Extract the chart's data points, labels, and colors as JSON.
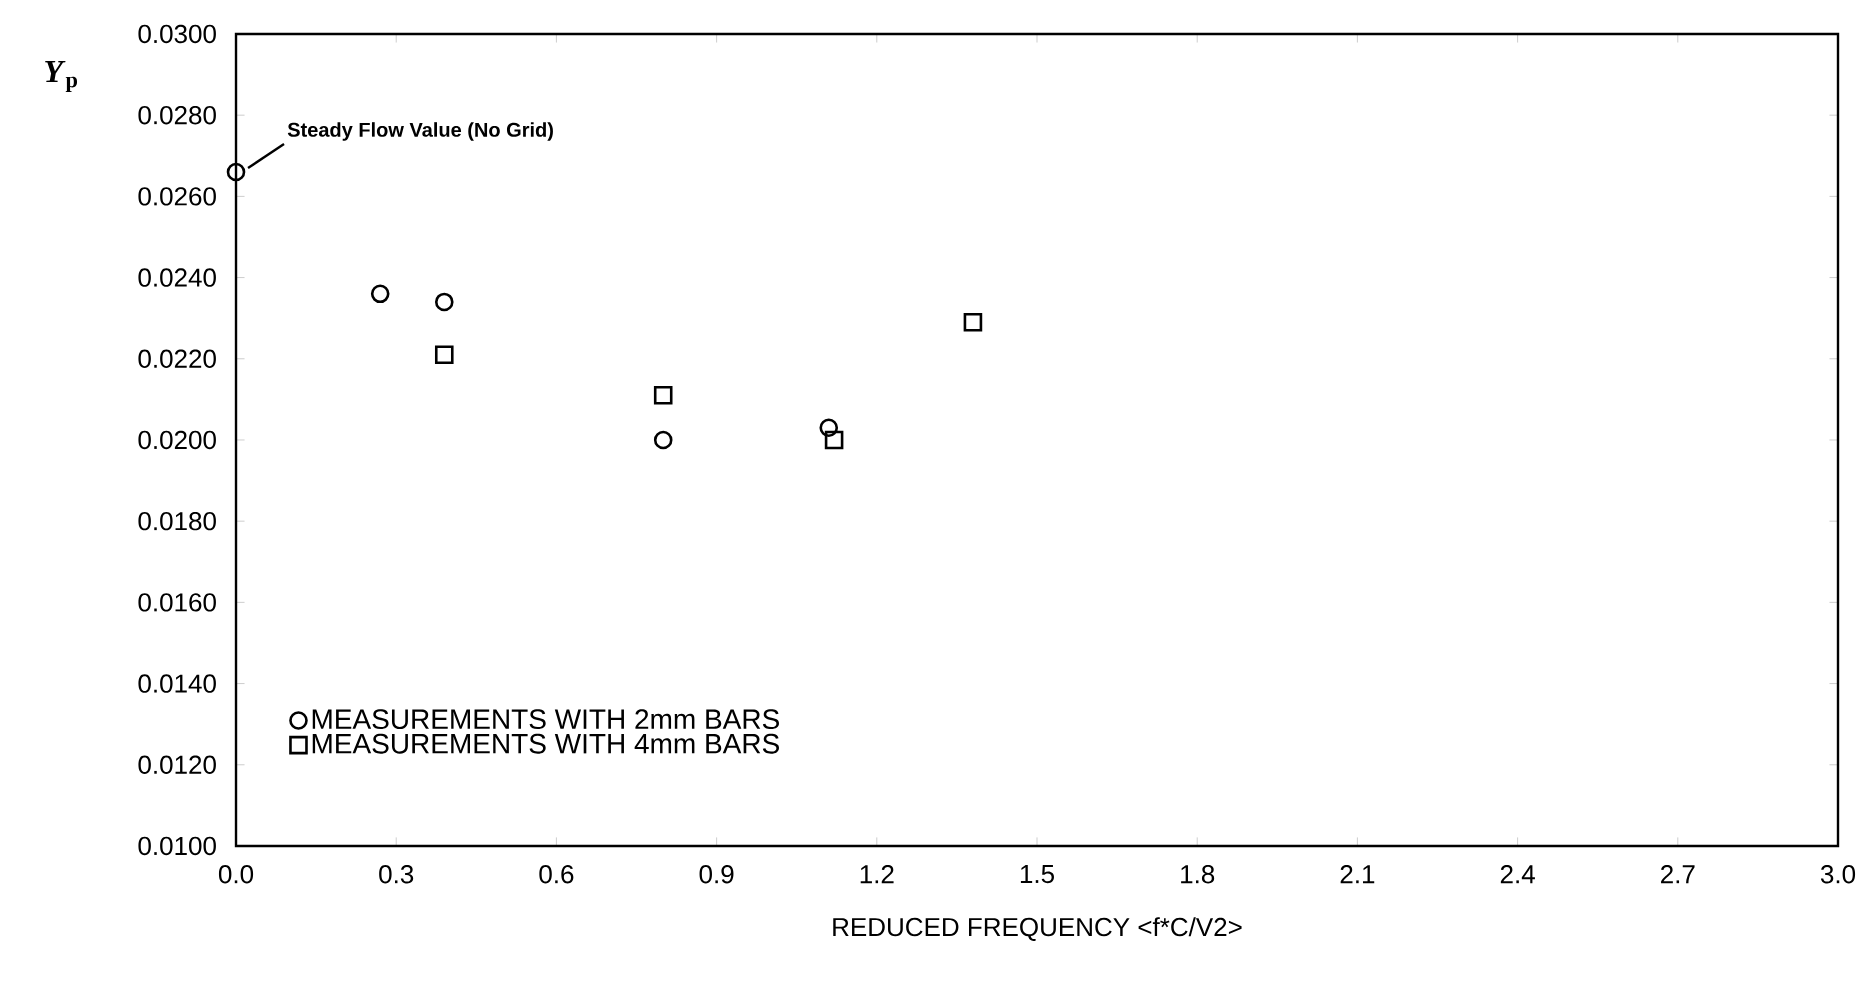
{
  "chart_data": {
    "type": "scatter",
    "xlabel": "REDUCED FREQUENCY <f*C/V2>",
    "ylabel": "*Y*$_{p}$",
    "xlim": [
      0,
      3.0
    ],
    "ylim": [
      0.01,
      0.03
    ],
    "xticks": [
      {
        "value": 0,
        "label": "0.0"
      },
      {
        "value": 0.3,
        "label": "0.3"
      },
      {
        "value": 0.6,
        "label": "0.6"
      },
      {
        "value": 0.9,
        "label": "0.9"
      },
      {
        "value": 1.2,
        "label": "1.2"
      },
      {
        "value": 1.5,
        "label": "1.5"
      },
      {
        "value": 1.8,
        "label": "1.8"
      },
      {
        "value": 2.1,
        "label": "2.1"
      },
      {
        "value": 2.4,
        "label": "2.4"
      },
      {
        "value": 2.7,
        "label": "2.7"
      },
      {
        "value": 3.0,
        "label": "3.0"
      }
    ],
    "yticks": [
      {
        "value": 0.01,
        "label": "0.0100"
      },
      {
        "value": 0.012,
        "label": "0.0120"
      },
      {
        "value": 0.014,
        "label": "0.0140"
      },
      {
        "value": 0.016,
        "label": "0.0160"
      },
      {
        "value": 0.018,
        "label": "0.0180"
      },
      {
        "value": 0.02,
        "label": "0.0200"
      },
      {
        "value": 0.022,
        "label": "0.0220"
      },
      {
        "value": 0.024,
        "label": "0.0240"
      },
      {
        "value": 0.026,
        "label": "0.0260"
      },
      {
        "value": 0.028,
        "label": "0.0280"
      },
      {
        "value": 0.03,
        "label": "0.0300"
      }
    ],
    "series": [
      {
        "name": "MEASUREMENTS WITH 2mm BARS",
        "color": "#000000",
        "marker": "circle",
        "x": [
          0,
          0.27,
          0.39,
          0.8,
          1.11
        ],
        "values": [
          0.0266,
          0.0236,
          0.0234,
          0.02,
          0.0203
        ]
      },
      {
        "name": "MEASUREMENTS WITH 4mm BARS",
        "color": "#000000",
        "marker": "square",
        "x": [
          0.39,
          0.8,
          1.12,
          1.38
        ],
        "values": [
          0.0221,
          0.0211,
          0.02,
          0.0229
        ]
      }
    ],
    "annotations": [
      {
        "text": "Steady Flow Value (No Grid)",
        "x": 0,
        "y": 0.0266
      }
    ],
    "grid": false,
    "legend": "bottom left"
  }
}
